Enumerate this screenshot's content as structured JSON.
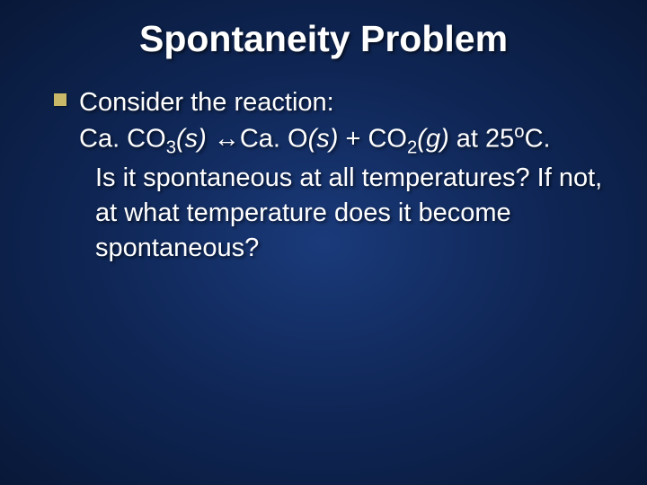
{
  "slide": {
    "title": "Spontaneity Problem",
    "title_fontsize": 41,
    "title_color": "#ffffff",
    "body_fontsize": 29,
    "body_color": "#ffffff",
    "bullet_color": "#c8b868",
    "background_colors": {
      "center": "#1a3a7a",
      "mid": "#0f2655",
      "edge": "#081838"
    },
    "lines": {
      "l1": "Consider the reaction:",
      "reaction": {
        "pre": "Ca. CO",
        "sub1": "3",
        "s1": "(s)",
        "arrow": " ↔Ca. O",
        "s2": "(s)",
        "plus": "  +  CO",
        "sub2": "2",
        "g": "(g)",
        "at": "  at 25",
        "sup": "o",
        "end": "C."
      },
      "q": " Is it spontaneous at all temperatures?  If not, at what temperature does it become spontaneous?"
    }
  }
}
